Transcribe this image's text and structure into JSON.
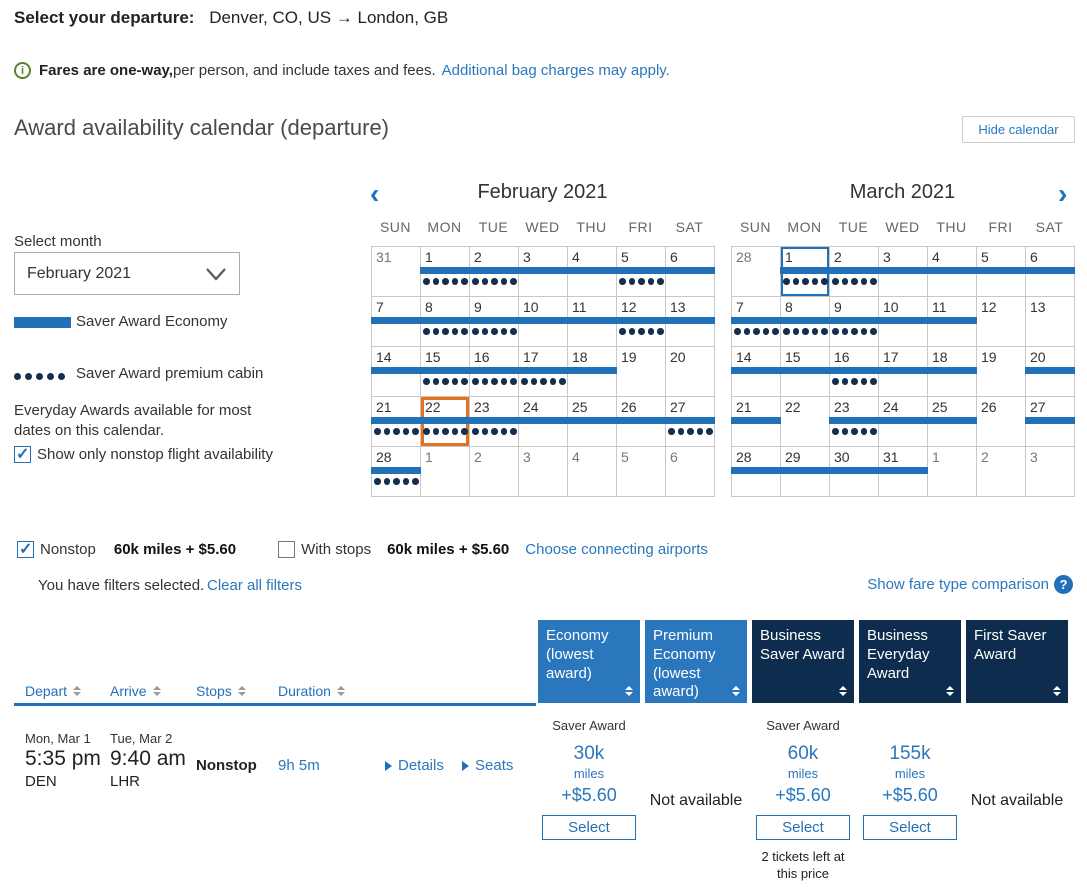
{
  "header": {
    "departure_label": "Select your departure:",
    "route": "Denver, CO, US → London, GB",
    "info_icon": "i",
    "fare_note_bold": "Fares are one-way,",
    "fare_note_rest": " per person, and include taxes and fees.",
    "bag_link": "Additional bag charges may apply.",
    "section_title": "Award availability calendar (departure)",
    "hide_calendar_label": "Hide calendar"
  },
  "sidebar": {
    "select_month_label": "Select month",
    "month_value": "February 2021",
    "legend_bar_label": "Saver Award Economy",
    "legend_dots_label": "Saver Award premium cabin",
    "everyday_note": "Everyday Awards available for most dates on this calendar.",
    "nonstop_checkbox_label": "Show only nonstop flight availability",
    "nonstop_checked": true
  },
  "calendar": {
    "prev_icon": "‹",
    "next_icon": "›",
    "day_headers": [
      "SUN",
      "MON",
      "TUE",
      "WED",
      "THU",
      "FRI",
      "SAT"
    ],
    "colors": {
      "bar": "#2171B9",
      "dots": "#132E4F",
      "selected_orange": "#E8711C",
      "selected_blue": "#2171B9"
    },
    "months": [
      {
        "title": "February 2021",
        "weeks": [
          [
            {
              "d": "31",
              "out": 1
            },
            {
              "d": "1",
              "bar": 1,
              "dots": 1
            },
            {
              "d": "2",
              "bar": 1,
              "dots": 1
            },
            {
              "d": "3",
              "bar": 1
            },
            {
              "d": "4",
              "bar": 1
            },
            {
              "d": "5",
              "bar": 1,
              "dots": 1
            },
            {
              "d": "6",
              "bar": 1
            }
          ],
          [
            {
              "d": "7",
              "bar": 1
            },
            {
              "d": "8",
              "bar": 1,
              "dots": 1
            },
            {
              "d": "9",
              "bar": 1,
              "dots": 1
            },
            {
              "d": "10",
              "bar": 1
            },
            {
              "d": "11",
              "bar": 1
            },
            {
              "d": "12",
              "bar": 1,
              "dots": 1
            },
            {
              "d": "13",
              "bar": 1
            }
          ],
          [
            {
              "d": "14",
              "bar": 1
            },
            {
              "d": "15",
              "bar": 1,
              "dots": 1
            },
            {
              "d": "16",
              "bar": 1,
              "dots": 1
            },
            {
              "d": "17",
              "bar": 1,
              "dots": 1
            },
            {
              "d": "18",
              "bar": 1
            },
            {
              "d": "19"
            },
            {
              "d": "20"
            }
          ],
          [
            {
              "d": "21",
              "bar": 1,
              "dots": 1
            },
            {
              "d": "22",
              "bar": 1,
              "dots": 1,
              "sel": "orange"
            },
            {
              "d": "23",
              "bar": 1,
              "dots": 1
            },
            {
              "d": "24",
              "bar": 1
            },
            {
              "d": "25",
              "bar": 1
            },
            {
              "d": "26",
              "bar": 1
            },
            {
              "d": "27",
              "bar": 1,
              "dots": 1
            }
          ],
          [
            {
              "d": "28",
              "bar": 1,
              "dots": 1
            },
            {
              "d": "1",
              "out": 1
            },
            {
              "d": "2",
              "out": 1
            },
            {
              "d": "3",
              "out": 1
            },
            {
              "d": "4",
              "out": 1
            },
            {
              "d": "5",
              "out": 1
            },
            {
              "d": "6",
              "out": 1
            }
          ]
        ]
      },
      {
        "title": "March 2021",
        "weeks": [
          [
            {
              "d": "28",
              "out": 1
            },
            {
              "d": "1",
              "bar": 1,
              "dots": 1,
              "sel": "blue"
            },
            {
              "d": "2",
              "bar": 1,
              "dots": 1
            },
            {
              "d": "3",
              "bar": 1
            },
            {
              "d": "4",
              "bar": 1
            },
            {
              "d": "5",
              "bar": 1
            },
            {
              "d": "6",
              "bar": 1
            }
          ],
          [
            {
              "d": "7",
              "bar": 1,
              "dots": 1
            },
            {
              "d": "8",
              "bar": 1,
              "dots": 1
            },
            {
              "d": "9",
              "bar": 1,
              "dots": 1
            },
            {
              "d": "10",
              "bar": 1
            },
            {
              "d": "11",
              "bar": 1
            },
            {
              "d": "12"
            },
            {
              "d": "13"
            }
          ],
          [
            {
              "d": "14",
              "bar": 1
            },
            {
              "d": "15",
              "bar": 1
            },
            {
              "d": "16",
              "bar": 1,
              "dots": 1
            },
            {
              "d": "17",
              "bar": 1
            },
            {
              "d": "18",
              "bar": 1
            },
            {
              "d": "19"
            },
            {
              "d": "20",
              "bar": 1
            }
          ],
          [
            {
              "d": "21",
              "bar": 1
            },
            {
              "d": "22"
            },
            {
              "d": "23",
              "bar": 1,
              "dots": 1
            },
            {
              "d": "24",
              "bar": 1
            },
            {
              "d": "25",
              "bar": 1
            },
            {
              "d": "26"
            },
            {
              "d": "27",
              "bar": 1
            }
          ],
          [
            {
              "d": "28",
              "bar": 1
            },
            {
              "d": "29",
              "bar": 1
            },
            {
              "d": "30",
              "bar": 1
            },
            {
              "d": "31",
              "bar": 1
            },
            {
              "d": "1",
              "out": 1
            },
            {
              "d": "2",
              "out": 1
            },
            {
              "d": "3",
              "out": 1
            }
          ]
        ]
      }
    ]
  },
  "filters": {
    "nonstop": {
      "label": "Nonstop",
      "price": "60k miles + $5.60",
      "checked": true
    },
    "with_stops": {
      "label": "With stops",
      "price": "60k miles + $5.60",
      "checked": false
    },
    "connecting_link": "Choose connecting airports",
    "selected_note": "You have filters selected.",
    "clear_link": "Clear all filters",
    "compare_link": "Show fare type comparison",
    "help_icon": "?"
  },
  "table": {
    "left_headers": {
      "depart": "Depart",
      "arrive": "Arrive",
      "stops": "Stops",
      "duration": "Duration"
    },
    "fare_columns": [
      {
        "label": "Economy (lowest award)",
        "tone": "light"
      },
      {
        "label": "Premium Economy (lowest award)",
        "tone": "light"
      },
      {
        "label": "Business Saver Award",
        "tone": "dark"
      },
      {
        "label": "Business Everyday Award",
        "tone": "dark"
      },
      {
        "label": "First Saver Award",
        "tone": "dark"
      }
    ],
    "row": {
      "depart": {
        "date": "Mon, Mar 1",
        "time": "5:35 pm",
        "airport": "DEN"
      },
      "arrive": {
        "date": "Tue, Mar 2",
        "time": "9:40 am",
        "airport": "LHR"
      },
      "stops": "Nonstop",
      "duration": "9h 5m",
      "details_link": "Details",
      "seats_link": "Seats",
      "fares": [
        {
          "available": true,
          "award_label": "Saver Award",
          "miles": "30k",
          "unit": "miles",
          "fee": "+$5.60",
          "button": "Select"
        },
        {
          "available": false,
          "text": "Not available"
        },
        {
          "available": true,
          "award_label": "Saver Award",
          "miles": "60k",
          "unit": "miles",
          "fee": "+$5.60",
          "button": "Select",
          "note": "2 tickets left at this price"
        },
        {
          "available": true,
          "award_label": "",
          "miles": "155k",
          "unit": "miles",
          "fee": "+$5.60",
          "button": "Select"
        },
        {
          "available": false,
          "text": "Not available"
        }
      ]
    }
  }
}
